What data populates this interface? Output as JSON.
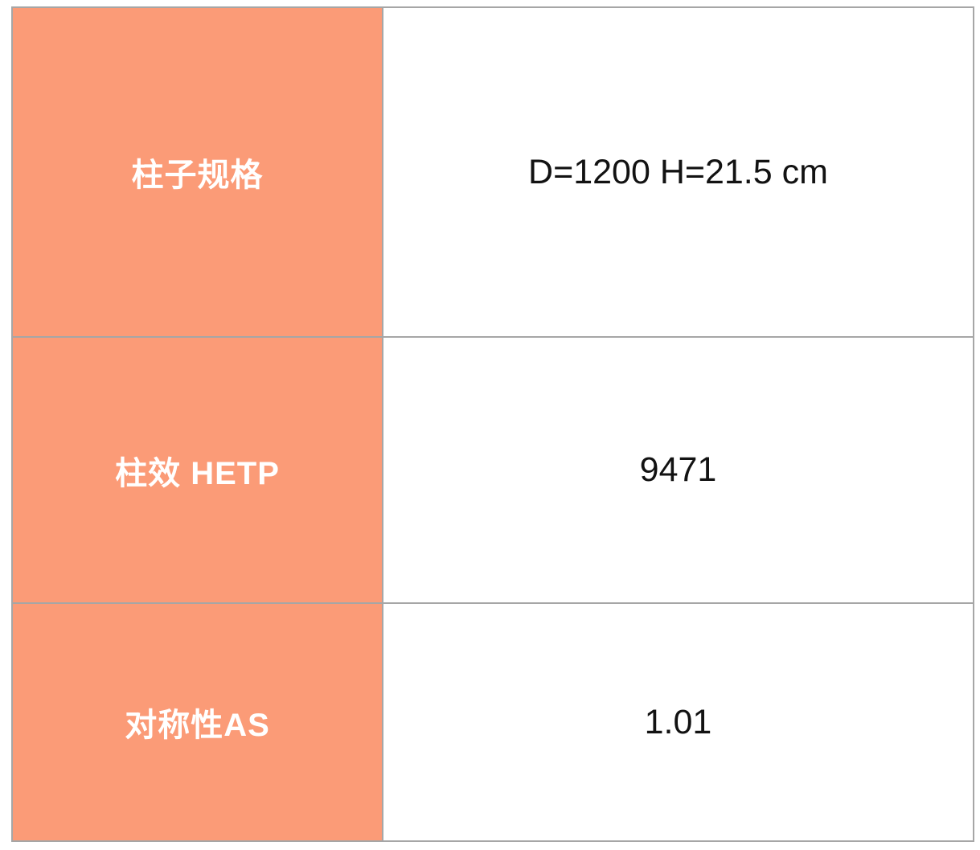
{
  "table": {
    "rows": [
      {
        "label": "柱子规格",
        "value": "D=1200 H=21.5 cm"
      },
      {
        "label": "柱效 HETP",
        "value": "9471"
      },
      {
        "label": "对称性AS",
        "value": "1.01"
      }
    ]
  },
  "colors": {
    "label_bg": "#fb9b77",
    "label_text": "#ffffff",
    "value_text": "#121212",
    "border": "#a6a6a6",
    "page_bg": "#ffffff"
  }
}
